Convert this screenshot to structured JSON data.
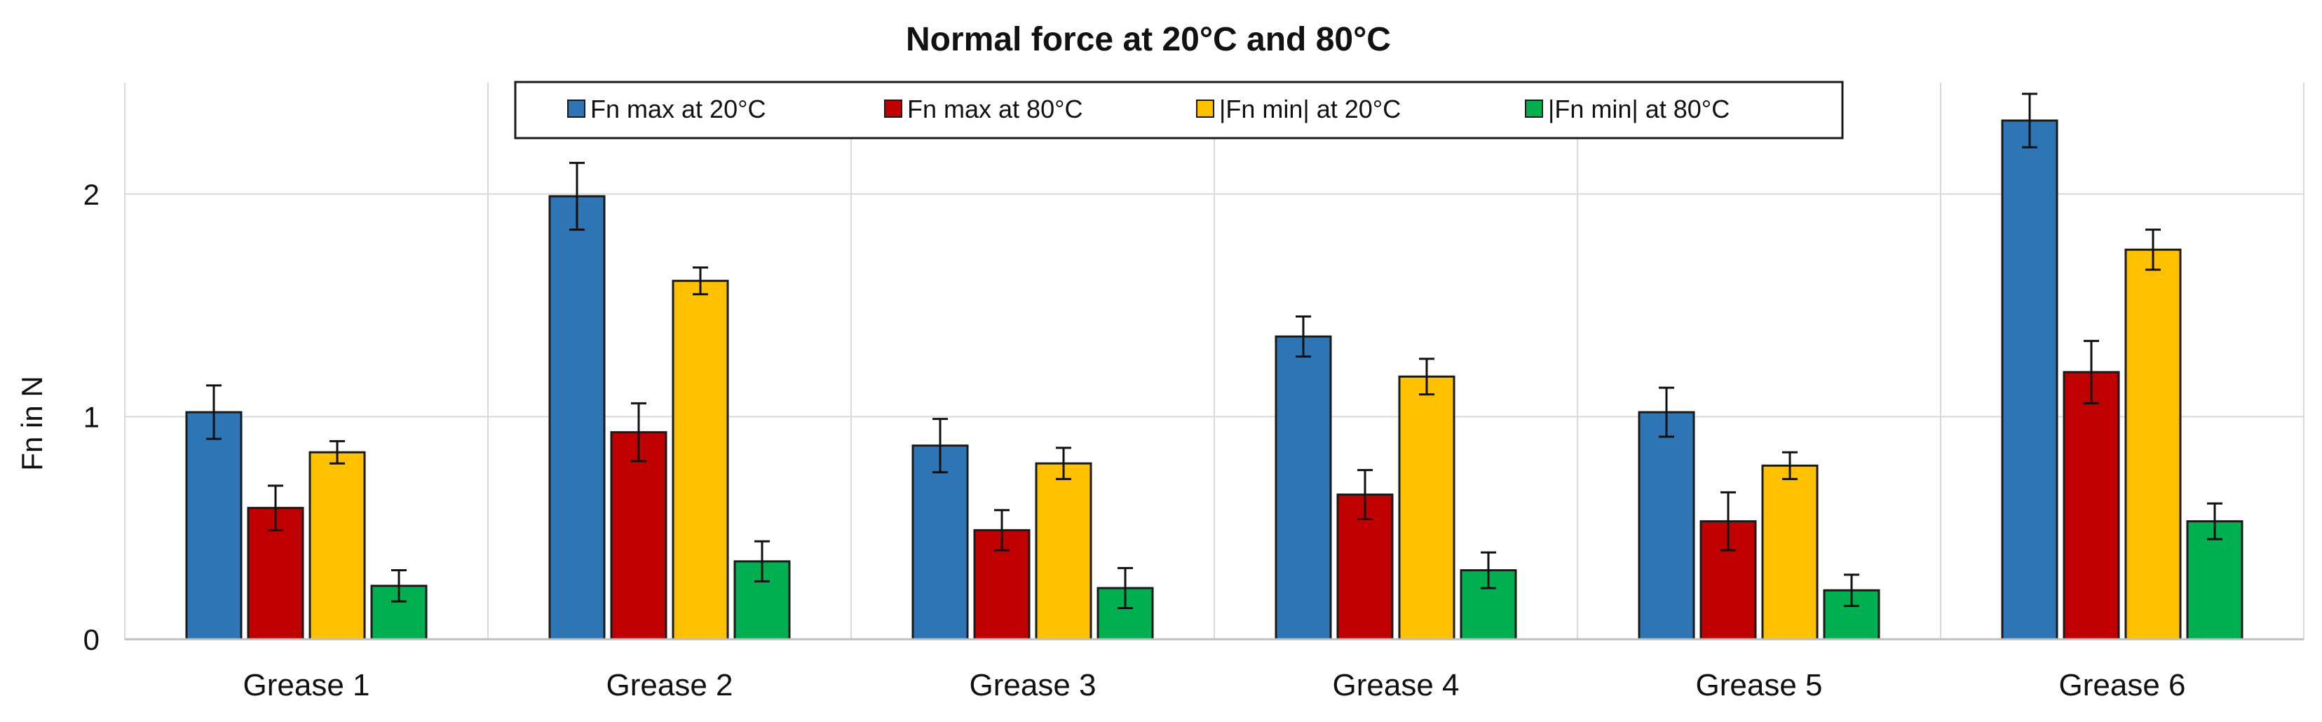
{
  "chart_data": {
    "type": "bar",
    "title": "Normal force at 20°C and 80°C",
    "xlabel": "",
    "ylabel": "Fn in N",
    "ylim": [
      0,
      2.5
    ],
    "yticks": [
      0,
      1,
      2
    ],
    "grid": true,
    "legend_position": "top-center",
    "categories": [
      "Grease 1",
      "Grease 2",
      "Grease 3",
      "Grease 4",
      "Grease 5",
      "Grease 6"
    ],
    "series": [
      {
        "name": "Fn max at 20°C",
        "color": "#2E75B6",
        "values": [
          1.02,
          1.99,
          0.87,
          1.36,
          1.02,
          2.33
        ],
        "errors": [
          0.12,
          0.15,
          0.12,
          0.09,
          0.11,
          0.12
        ]
      },
      {
        "name": "Fn max at 80°C",
        "color": "#C00000",
        "values": [
          0.59,
          0.93,
          0.49,
          0.65,
          0.53,
          1.2
        ],
        "errors": [
          0.1,
          0.13,
          0.09,
          0.11,
          0.13,
          0.14
        ]
      },
      {
        "name": "|Fn min| at 20°C",
        "color": "#FFC000",
        "values": [
          0.84,
          1.61,
          0.79,
          1.18,
          0.78,
          1.75
        ],
        "errors": [
          0.05,
          0.06,
          0.07,
          0.08,
          0.06,
          0.09
        ]
      },
      {
        "name": "|Fn min| at 80°C",
        "color": "#00B050",
        "values": [
          0.24,
          0.35,
          0.23,
          0.31,
          0.22,
          0.53
        ],
        "errors": [
          0.07,
          0.09,
          0.09,
          0.08,
          0.07,
          0.08
        ]
      }
    ]
  }
}
